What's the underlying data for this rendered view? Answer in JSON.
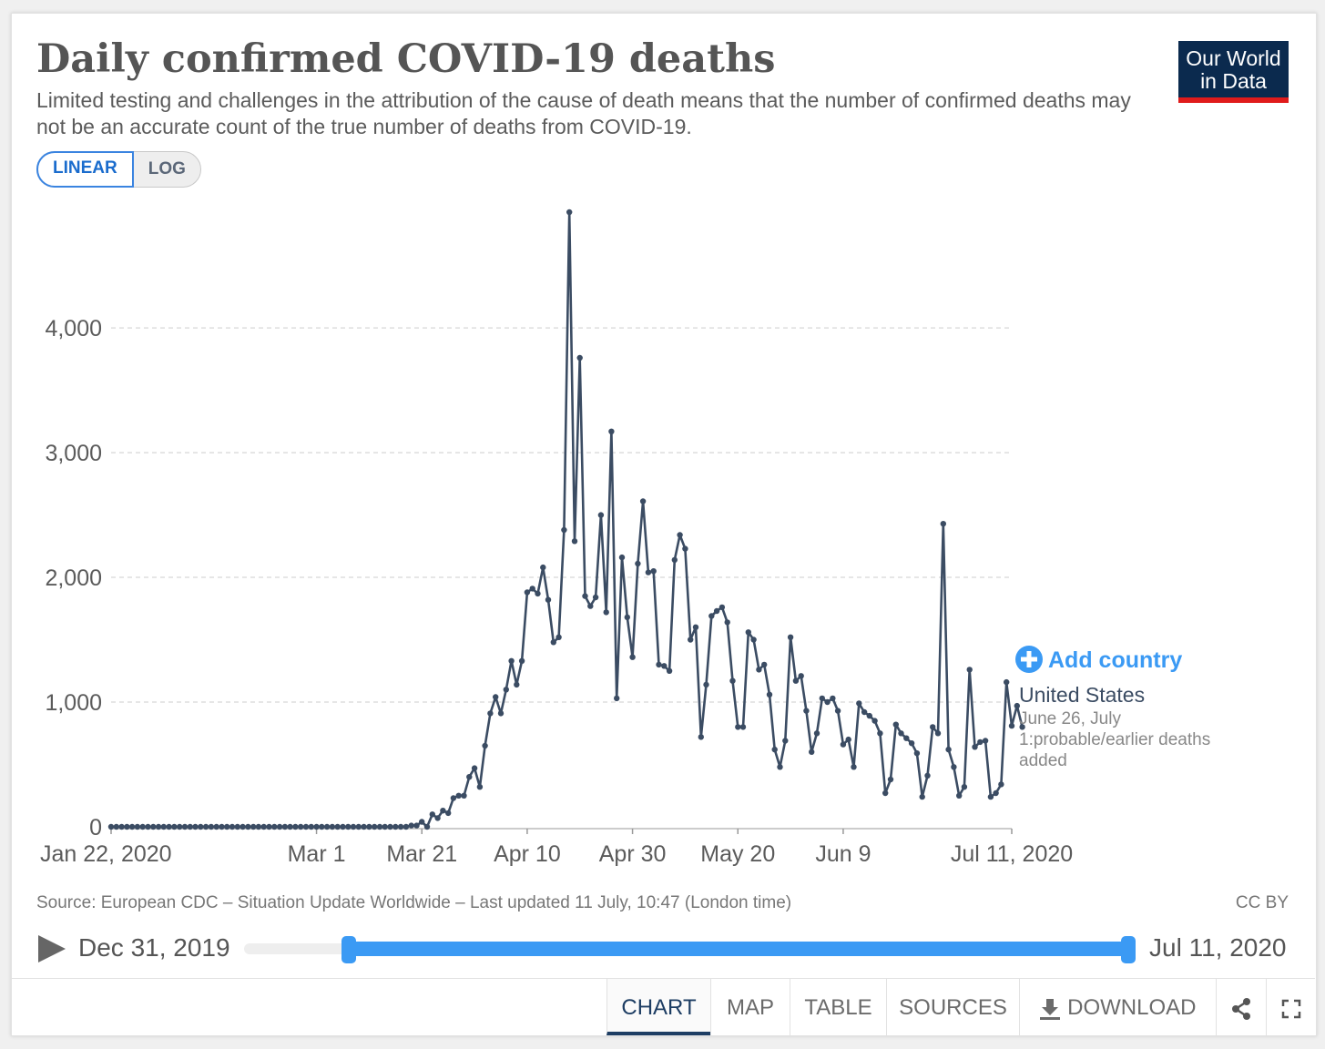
{
  "title": "Daily confirmed COVID-19 deaths",
  "subtitle": "Limited testing and challenges in the attribution of the cause of death means that the number of confirmed deaths may not be an accurate count of the true number of deaths from COVID-19.",
  "scale_toggle": {
    "linear_label": "LINEAR",
    "log_label": "LOG",
    "selected": "LINEAR"
  },
  "logo": {
    "line1": "Our World",
    "line2": "in Data"
  },
  "add_country_label": "Add country",
  "series_label": {
    "name": "United States",
    "note": [
      "June 26, July",
      "1:probable/earlier deaths",
      "added"
    ]
  },
  "source": "Source: European CDC – Situation Update Worldwide – Last updated 11 July, 10:47 (London time)",
  "license": "CC BY",
  "timeline": {
    "start_label": "Dec 31, 2019",
    "end_label": "Jul 11, 2020",
    "range_start_fraction": 0.12,
    "range_end_fraction": 1.0
  },
  "tabs": [
    {
      "label": "CHART",
      "active": true
    },
    {
      "label": "MAP",
      "active": false
    },
    {
      "label": "TABLE",
      "active": false
    },
    {
      "label": "SOURCES",
      "active": false
    },
    {
      "label": "DOWNLOAD",
      "active": false
    }
  ],
  "colors": {
    "line": "#3b4c63",
    "accent": "#3b9af4",
    "grid": "#dddddd",
    "label": "#5b5b5b"
  },
  "chart_data": {
    "type": "line",
    "title": "Daily confirmed COVID-19 deaths",
    "xlabel": "",
    "ylabel": "",
    "ylim": [
      0,
      4928
    ],
    "yticks": [
      0,
      1000,
      2000,
      3000,
      4000
    ],
    "ytick_labels": [
      "0",
      "1,000",
      "2,000",
      "3,000",
      "4,000"
    ],
    "x_start": "2020-01-22",
    "x_end": "2020-07-11",
    "x_day_count": 172,
    "xticks": [
      {
        "day": 0,
        "label": "Jan 22, 2020"
      },
      {
        "day": 39,
        "label": "Mar 1"
      },
      {
        "day": 59,
        "label": "Mar 21"
      },
      {
        "day": 79,
        "label": "Apr 10"
      },
      {
        "day": 99,
        "label": "Apr 30"
      },
      {
        "day": 119,
        "label": "May 20"
      },
      {
        "day": 139,
        "label": "Jun 9"
      },
      {
        "day": 171,
        "label": "Jul 11, 2020"
      }
    ],
    "grid": "horizontal-dashed",
    "series": [
      {
        "name": "United States",
        "values": [
          0,
          0,
          0,
          0,
          0,
          0,
          0,
          0,
          0,
          0,
          0,
          0,
          0,
          0,
          0,
          0,
          0,
          0,
          0,
          0,
          0,
          0,
          0,
          0,
          0,
          0,
          0,
          0,
          0,
          0,
          0,
          0,
          0,
          0,
          0,
          0,
          0,
          0,
          0,
          0,
          0,
          0,
          0,
          0,
          0,
          0,
          0,
          0,
          0,
          0,
          0,
          0,
          0,
          0,
          0,
          0,
          0,
          10,
          10,
          40,
          0,
          100,
          70,
          130,
          110,
          230,
          250,
          250,
          400,
          470,
          320,
          650,
          910,
          1040,
          910,
          1100,
          1330,
          1140,
          1330,
          1880,
          1910,
          1870,
          2080,
          1820,
          1480,
          1520,
          2380,
          4928,
          2290,
          3760,
          1850,
          1770,
          1840,
          2500,
          1720,
          3170,
          1030,
          2160,
          1680,
          1360,
          2110,
          2610,
          2040,
          2050,
          1300,
          1290,
          1250,
          2140,
          2340,
          2230,
          1500,
          1600,
          720,
          1140,
          1690,
          1730,
          1760,
          1640,
          1170,
          800,
          800,
          1560,
          1500,
          1260,
          1300,
          1060,
          620,
          480,
          690,
          1520,
          1170,
          1210,
          930,
          600,
          750,
          1030,
          1000,
          1030,
          930,
          660,
          700,
          480,
          990,
          920,
          890,
          850,
          750,
          270,
          380,
          820,
          750,
          710,
          670,
          590,
          240,
          410,
          800,
          750,
          2430,
          620,
          480,
          250,
          320,
          1260,
          640,
          680,
          690,
          240,
          270,
          340,
          1160,
          810,
          970,
          800
        ]
      }
    ]
  }
}
